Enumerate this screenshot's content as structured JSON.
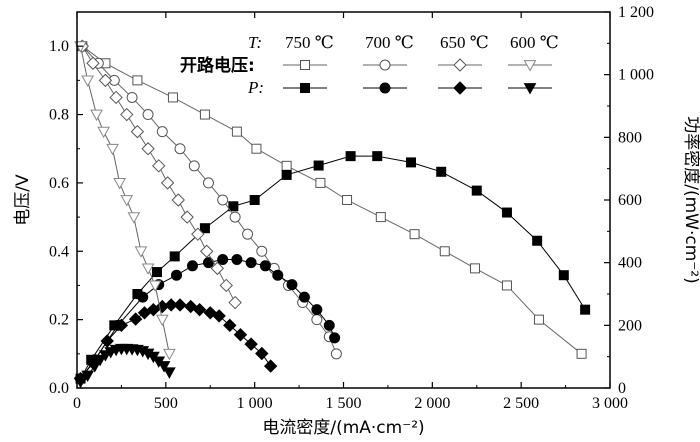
{
  "chart_data": {
    "type": "line",
    "xlabel": "电流密度/(mA·cm⁻²)",
    "ylabel_left": "电压/V",
    "ylabel_right": "功率密度/(mW·cm⁻²)",
    "xlim": [
      0,
      3000
    ],
    "ylim_left": [
      0,
      1.1
    ],
    "ylim_right": [
      0,
      1200
    ],
    "x_ticks": [
      "0",
      "500",
      "1 000",
      "1 500",
      "2 000",
      "2 500",
      "3 000"
    ],
    "x_tick_values": [
      0,
      500,
      1000,
      1500,
      2000,
      2500,
      3000
    ],
    "y_left_ticks": [
      "0.0",
      "0.2",
      "0.4",
      "0.6",
      "0.8",
      "1.0"
    ],
    "y_left_tick_values": [
      0,
      0.2,
      0.4,
      0.6,
      0.8,
      1.0
    ],
    "y_right_ticks": [
      "0",
      "200",
      "400",
      "600",
      "800",
      "1 000",
      "1 200"
    ],
    "y_right_tick_values": [
      0,
      200,
      400,
      600,
      800,
      1000,
      1200
    ],
    "legend": {
      "t_label": "T:",
      "ocv_label": "开路电压:",
      "p_label": "P:",
      "temperatures": [
        "750 ℃",
        "700 ℃",
        "650 ℃",
        "600 ℃"
      ]
    },
    "series": [
      {
        "temperature": "750 ℃",
        "kind": "voltage",
        "marker": "square-open",
        "axis": "left",
        "x": [
          30,
          160,
          340,
          540,
          720,
          900,
          1010,
          1180,
          1370,
          1520,
          1710,
          1900,
          2070,
          2240,
          2420,
          2600,
          2840
        ],
        "y": [
          1.0,
          0.95,
          0.9,
          0.85,
          0.8,
          0.75,
          0.7,
          0.65,
          0.6,
          0.55,
          0.5,
          0.45,
          0.4,
          0.35,
          0.3,
          0.2,
          0.1
        ]
      },
      {
        "temperature": "750 ℃",
        "kind": "power",
        "marker": "square-filled",
        "axis": "right",
        "x": [
          20,
          80,
          210,
          340,
          450,
          550,
          720,
          880,
          1000,
          1180,
          1360,
          1540,
          1690,
          1880,
          2050,
          2250,
          2420,
          2590,
          2740,
          2860
        ],
        "y": [
          30,
          90,
          200,
          300,
          370,
          420,
          510,
          580,
          600,
          680,
          710,
          740,
          740,
          720,
          690,
          630,
          560,
          470,
          360,
          250
        ]
      },
      {
        "temperature": "700 ℃",
        "kind": "voltage",
        "marker": "circle-open",
        "axis": "left",
        "x": [
          30,
          120,
          210,
          310,
          400,
          480,
          580,
          660,
          740,
          820,
          890,
          960,
          1040,
          1110,
          1190,
          1270,
          1350,
          1420,
          1460
        ],
        "y": [
          1.0,
          0.95,
          0.9,
          0.85,
          0.8,
          0.75,
          0.7,
          0.65,
          0.6,
          0.55,
          0.5,
          0.45,
          0.4,
          0.35,
          0.3,
          0.25,
          0.2,
          0.15,
          0.1
        ]
      },
      {
        "temperature": "700 ℃",
        "kind": "power",
        "marker": "circle-filled",
        "axis": "right",
        "x": [
          20,
          100,
          230,
          370,
          460,
          560,
          650,
          740,
          820,
          900,
          980,
          1060,
          1130,
          1210,
          1280,
          1350,
          1420,
          1450
        ],
        "y": [
          30,
          90,
          200,
          290,
          330,
          360,
          390,
          400,
          410,
          410,
          400,
          390,
          360,
          330,
          290,
          250,
          200,
          160
        ]
      },
      {
        "temperature": "650 ℃",
        "kind": "voltage",
        "marker": "diamond-open",
        "axis": "left",
        "x": [
          30,
          90,
          160,
          220,
          280,
          340,
          400,
          460,
          510,
          570,
          620,
          680,
          730,
          790,
          840,
          890
        ],
        "y": [
          1.0,
          0.95,
          0.9,
          0.85,
          0.8,
          0.75,
          0.7,
          0.65,
          0.6,
          0.55,
          0.5,
          0.45,
          0.4,
          0.35,
          0.3,
          0.25
        ]
      },
      {
        "temperature": "650 ℃",
        "kind": "power",
        "marker": "diamond-filled",
        "axis": "right",
        "x": [
          20,
          90,
          170,
          250,
          330,
          380,
          430,
          480,
          530,
          580,
          640,
          690,
          750,
          800,
          860,
          920,
          980,
          1040,
          1090
        ],
        "y": [
          30,
          80,
          150,
          200,
          220,
          240,
          250,
          260,
          265,
          265,
          260,
          250,
          240,
          230,
          200,
          170,
          140,
          110,
          70
        ]
      },
      {
        "temperature": "600 ℃",
        "kind": "voltage",
        "marker": "triangle-open",
        "axis": "left",
        "x": [
          20,
          60,
          110,
          150,
          200,
          240,
          280,
          320,
          360,
          400,
          440,
          480,
          520
        ],
        "y": [
          1.0,
          0.9,
          0.8,
          0.75,
          0.7,
          0.6,
          0.55,
          0.5,
          0.4,
          0.35,
          0.3,
          0.2,
          0.1
        ]
      },
      {
        "temperature": "600 ℃",
        "kind": "power",
        "marker": "triangle-filled",
        "axis": "right",
        "x": [
          20,
          60,
          100,
          130,
          160,
          190,
          220,
          250,
          280,
          310,
          340,
          370,
          400,
          430,
          460,
          490,
          520
        ],
        "y": [
          20,
          40,
          70,
          90,
          105,
          115,
          122,
          125,
          125,
          124,
          122,
          118,
          110,
          100,
          85,
          70,
          50
        ]
      }
    ]
  }
}
